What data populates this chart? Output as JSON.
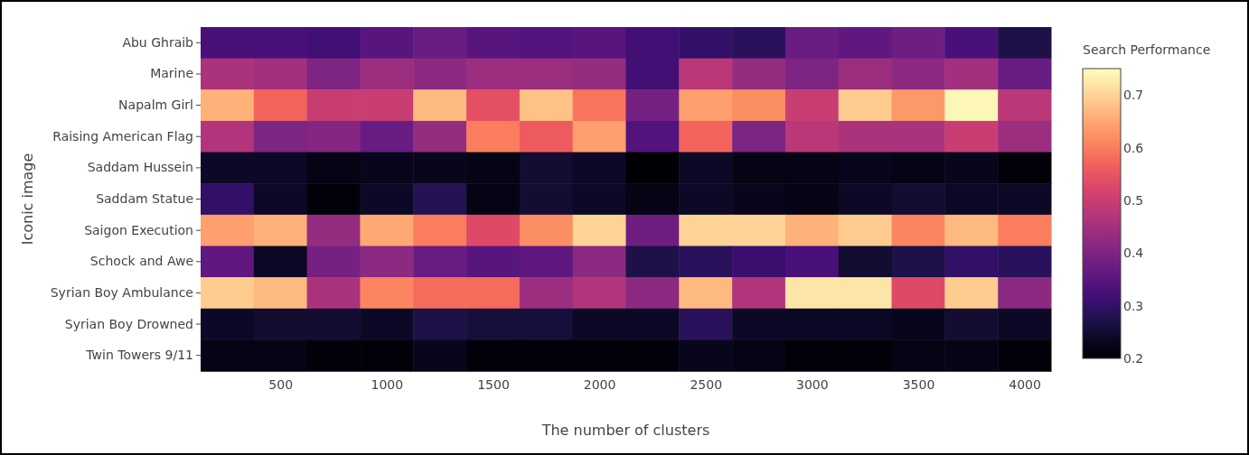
{
  "chart_data": {
    "type": "heatmap",
    "xlabel": "The number of clusters",
    "ylabel": "Iconic image",
    "clabel": "Search Performance",
    "x": [
      250,
      500,
      750,
      1000,
      1250,
      1500,
      1750,
      2000,
      2250,
      2500,
      2750,
      3000,
      3250,
      3500,
      3750,
      4000
    ],
    "xlim": [
      125,
      4125
    ],
    "xticks": [
      500,
      1000,
      1500,
      2000,
      2500,
      3000,
      3500,
      4000
    ],
    "y_categories": [
      "Abu Ghraib",
      "Marine",
      "Napalm Girl",
      "Raising American Flag",
      "Saddam Hussein",
      "Saddam Statue",
      "Saigon Execution",
      "Schock and Awe",
      "Syrian Boy Ambulance",
      "Syrian Boy Drowned",
      "Twin Towers 9/11"
    ],
    "cells": [
      [
        0.33,
        0.33,
        0.32,
        0.35,
        0.37,
        0.35,
        0.34,
        0.35,
        0.32,
        0.3,
        0.29,
        0.37,
        0.36,
        0.38,
        0.33,
        0.27
      ],
      [
        0.46,
        0.45,
        0.4,
        0.44,
        0.42,
        0.44,
        0.44,
        0.43,
        0.32,
        0.48,
        0.43,
        0.4,
        0.44,
        0.42,
        0.45,
        0.37
      ],
      [
        0.66,
        0.57,
        0.5,
        0.5,
        0.67,
        0.54,
        0.68,
        0.59,
        0.39,
        0.64,
        0.62,
        0.5,
        0.69,
        0.63,
        0.74,
        0.48
      ],
      [
        0.47,
        0.4,
        0.41,
        0.37,
        0.43,
        0.6,
        0.56,
        0.64,
        0.34,
        0.57,
        0.4,
        0.48,
        0.46,
        0.46,
        0.5,
        0.44
      ],
      [
        0.24,
        0.24,
        0.22,
        0.23,
        0.23,
        0.22,
        0.25,
        0.24,
        0.2,
        0.24,
        0.22,
        0.22,
        0.23,
        0.22,
        0.23,
        0.21
      ],
      [
        0.3,
        0.24,
        0.21,
        0.24,
        0.28,
        0.22,
        0.25,
        0.24,
        0.22,
        0.24,
        0.23,
        0.22,
        0.24,
        0.25,
        0.24,
        0.24
      ],
      [
        0.64,
        0.66,
        0.43,
        0.65,
        0.6,
        0.53,
        0.62,
        0.7,
        0.38,
        0.7,
        0.7,
        0.66,
        0.69,
        0.61,
        0.67,
        0.6
      ],
      [
        0.36,
        0.24,
        0.39,
        0.42,
        0.37,
        0.35,
        0.36,
        0.42,
        0.27,
        0.29,
        0.31,
        0.33,
        0.25,
        0.27,
        0.3,
        0.29
      ],
      [
        0.69,
        0.67,
        0.46,
        0.61,
        0.58,
        0.58,
        0.44,
        0.47,
        0.42,
        0.67,
        0.47,
        0.72,
        0.72,
        0.53,
        0.69,
        0.42
      ],
      [
        0.24,
        0.25,
        0.25,
        0.24,
        0.27,
        0.26,
        0.26,
        0.24,
        0.24,
        0.29,
        0.24,
        0.24,
        0.24,
        0.23,
        0.25,
        0.24
      ],
      [
        0.22,
        0.22,
        0.21,
        0.21,
        0.23,
        0.21,
        0.21,
        0.21,
        0.21,
        0.23,
        0.22,
        0.21,
        0.21,
        0.22,
        0.22,
        0.21
      ]
    ],
    "clim": [
      0.2,
      0.75
    ],
    "cticks": [
      0.2,
      0.3,
      0.4,
      0.5,
      0.6,
      0.7
    ]
  }
}
